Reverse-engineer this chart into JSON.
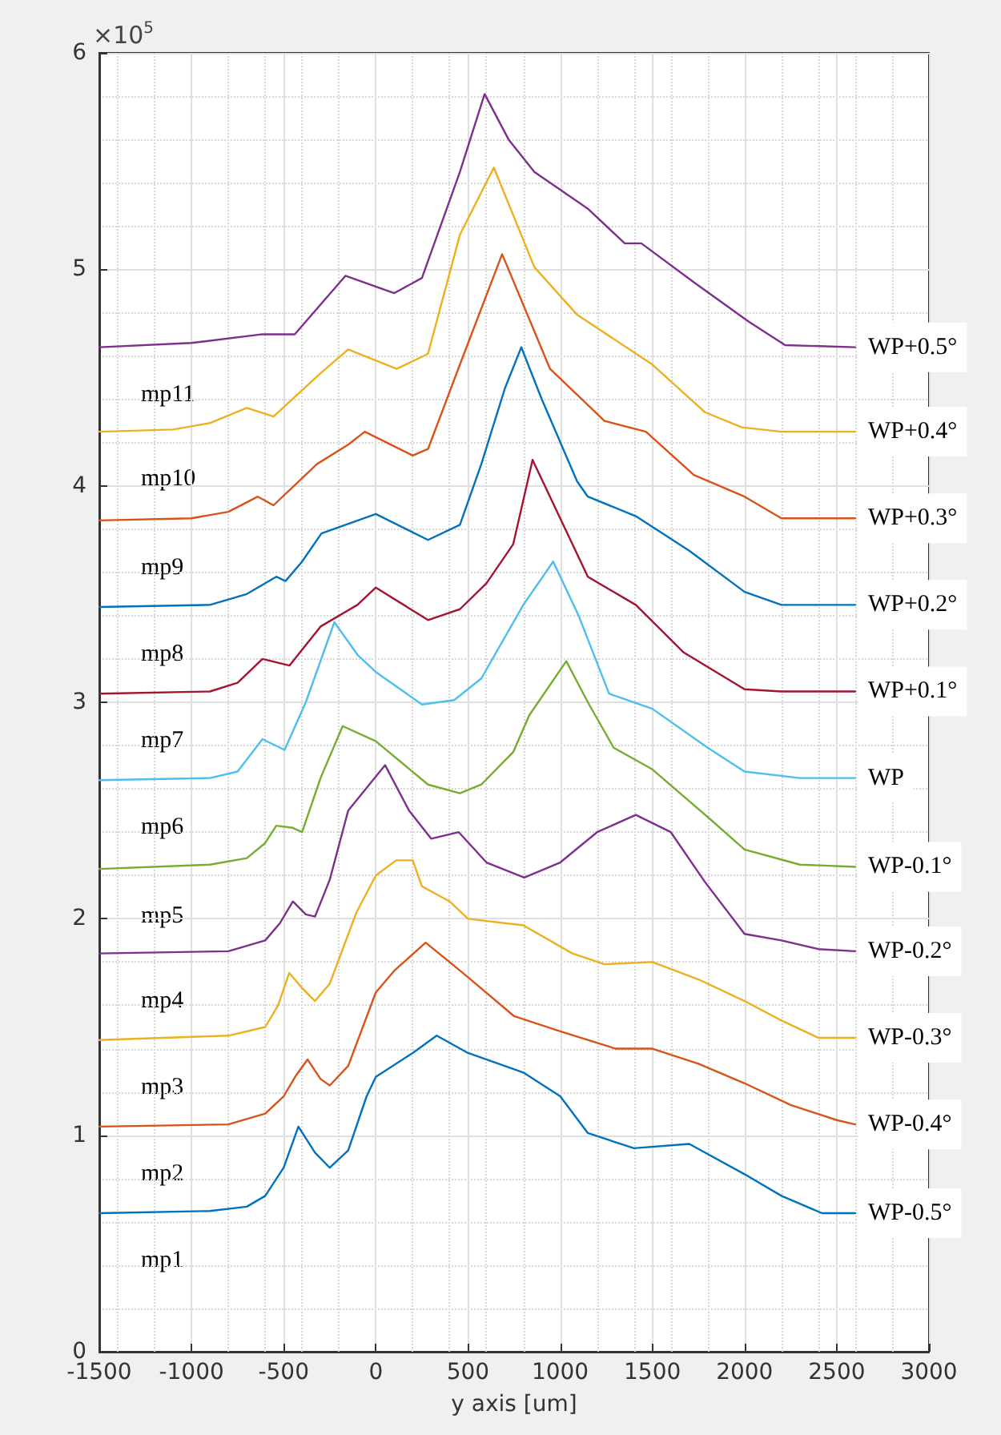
{
  "chart_data": {
    "type": "line",
    "xlabel": "y axis [um]",
    "xlim": [
      -1500,
      3000
    ],
    "xticks": [
      -1500,
      -1000,
      -500,
      0,
      500,
      1000,
      1500,
      2000,
      2500,
      3000
    ],
    "ylim": [
      0,
      6
    ],
    "yticks": [
      0,
      1,
      2,
      3,
      4,
      5,
      6
    ],
    "grid": true,
    "legend": false,
    "marker": "none",
    "line_style": "solid",
    "annotations": [
      "×10$^{5}$",
      "mp1",
      "mp2",
      "mp3",
      "mp4",
      "mp5",
      "mp6",
      "mp7",
      "mp8",
      "mp9",
      "mp10",
      "mp11"
    ],
    "series": [
      {
        "name": "WP-0.5°",
        "color": "#0072bd",
        "x": [
          -1500,
          -900,
          -700,
          -600,
          -500,
          -420,
          -330,
          -250,
          -150,
          -50,
          0,
          200,
          330,
          500,
          800,
          1000,
          1150,
          1400,
          1700,
          2000,
          2200,
          2420,
          2600
        ],
        "values": [
          0.64,
          0.65,
          0.67,
          0.72,
          0.85,
          1.04,
          0.92,
          0.85,
          0.93,
          1.18,
          1.27,
          1.38,
          1.46,
          1.38,
          1.29,
          1.18,
          1.01,
          0.94,
          0.96,
          0.82,
          0.72,
          0.64,
          0.64
        ]
      },
      {
        "name": "WP-0.4°",
        "color": "#d95319",
        "x": [
          -1500,
          -800,
          -600,
          -500,
          -430,
          -370,
          -300,
          -250,
          -150,
          0,
          100,
          270,
          400,
          500,
          750,
          1000,
          1300,
          1500,
          1750,
          2000,
          2250,
          2500,
          2600
        ],
        "values": [
          1.04,
          1.05,
          1.1,
          1.18,
          1.28,
          1.35,
          1.26,
          1.23,
          1.32,
          1.66,
          1.76,
          1.89,
          1.8,
          1.73,
          1.55,
          1.48,
          1.4,
          1.4,
          1.33,
          1.24,
          1.14,
          1.07,
          1.05
        ]
      },
      {
        "name": "WP-0.3°",
        "color": "#edb120",
        "x": [
          -1500,
          -800,
          -600,
          -530,
          -470,
          -400,
          -330,
          -250,
          -105,
          0,
          110,
          200,
          250,
          400,
          500,
          800,
          1066,
          1240,
          1500,
          1750,
          2000,
          2200,
          2400,
          2600
        ],
        "values": [
          1.44,
          1.46,
          1.5,
          1.6,
          1.75,
          1.68,
          1.62,
          1.7,
          2.03,
          2.2,
          2.27,
          2.27,
          2.15,
          2.08,
          2.0,
          1.97,
          1.84,
          1.79,
          1.8,
          1.72,
          1.62,
          1.53,
          1.45,
          1.45
        ]
      },
      {
        "name": "WP-0.2°",
        "color": "#7e2f8e",
        "x": [
          -1500,
          -800,
          -600,
          -520,
          -450,
          -380,
          -330,
          -250,
          -150,
          50,
          180,
          300,
          450,
          600,
          805,
          1000,
          1200,
          1410,
          1600,
          1785,
          2000,
          2200,
          2400,
          2600
        ],
        "values": [
          1.84,
          1.85,
          1.9,
          1.98,
          2.08,
          2.02,
          2.01,
          2.18,
          2.5,
          2.71,
          2.5,
          2.37,
          2.4,
          2.26,
          2.19,
          2.26,
          2.4,
          2.48,
          2.4,
          2.17,
          1.93,
          1.9,
          1.86,
          1.85
        ]
      },
      {
        "name": "WP-0.1°",
        "color": "#77ac30",
        "x": [
          -1500,
          -900,
          -700,
          -600,
          -540,
          -450,
          -400,
          -300,
          -180,
          0,
          283,
          456,
          572,
          745,
          832,
          1033,
          1150,
          1290,
          1500,
          1800,
          2000,
          2300,
          2600
        ],
        "values": [
          2.23,
          2.25,
          2.28,
          2.35,
          2.43,
          2.42,
          2.4,
          2.65,
          2.89,
          2.82,
          2.62,
          2.58,
          2.62,
          2.77,
          2.94,
          3.19,
          3.0,
          2.79,
          2.69,
          2.47,
          2.32,
          2.25,
          2.24
        ]
      },
      {
        "name": "WP",
        "color": "#4dbeee",
        "x": [
          -1500,
          -900,
          -750,
          -615,
          -495,
          -380,
          -225,
          -100,
          0,
          250,
          425,
          572,
          800,
          962,
          1100,
          1265,
          1500,
          1800,
          2000,
          2300,
          2600
        ],
        "values": [
          2.64,
          2.65,
          2.68,
          2.83,
          2.78,
          3.0,
          3.37,
          3.22,
          3.14,
          2.99,
          3.01,
          3.11,
          3.45,
          3.65,
          3.4,
          3.04,
          2.97,
          2.79,
          2.68,
          2.65,
          2.65
        ]
      },
      {
        "name": "WP+0.1°",
        "color": "#a2142f",
        "x": [
          -1500,
          -900,
          -750,
          -615,
          -468,
          -300,
          -100,
          0,
          283,
          456,
          600,
          745,
          850,
          1000,
          1150,
          1410,
          1670,
          2000,
          2200,
          2600
        ],
        "values": [
          3.04,
          3.05,
          3.09,
          3.2,
          3.17,
          3.35,
          3.45,
          3.53,
          3.38,
          3.43,
          3.55,
          3.73,
          4.12,
          3.85,
          3.58,
          3.45,
          3.23,
          3.06,
          3.05,
          3.05
        ]
      },
      {
        "name": "WP+0.2°",
        "color": "#0072bd",
        "x": [
          -1500,
          -900,
          -700,
          -540,
          -490,
          -400,
          -295,
          0,
          283,
          456,
          572,
          700,
          789,
          900,
          1092,
          1150,
          1410,
          1700,
          2000,
          2200,
          2600
        ],
        "values": [
          3.44,
          3.45,
          3.5,
          3.58,
          3.56,
          3.65,
          3.78,
          3.87,
          3.75,
          3.82,
          4.1,
          4.45,
          4.64,
          4.4,
          4.02,
          3.95,
          3.86,
          3.7,
          3.51,
          3.45,
          3.45
        ]
      },
      {
        "name": "WP+0.3°",
        "color": "#d95319",
        "x": [
          -1500,
          -1000,
          -800,
          -640,
          -555,
          -320,
          -150,
          -60,
          200,
          283,
          456,
          685,
          945,
          1240,
          1465,
          1725,
          2000,
          2200,
          2600
        ],
        "values": [
          3.84,
          3.85,
          3.88,
          3.95,
          3.91,
          4.1,
          4.19,
          4.25,
          4.14,
          4.17,
          4.56,
          5.07,
          4.54,
          4.3,
          4.25,
          4.05,
          3.95,
          3.85,
          3.85
        ]
      },
      {
        "name": "WP+0.4°",
        "color": "#edb120",
        "x": [
          -1500,
          -1100,
          -900,
          -700,
          -555,
          -300,
          -150,
          113,
          283,
          456,
          640,
          860,
          1092,
          1500,
          1785,
          1985,
          2200,
          2600
        ],
        "values": [
          4.25,
          4.26,
          4.29,
          4.36,
          4.32,
          4.52,
          4.63,
          4.54,
          4.61,
          5.16,
          5.47,
          5.01,
          4.79,
          4.56,
          4.34,
          4.27,
          4.25,
          4.25
        ]
      },
      {
        "name": "WP+0.5°",
        "color": "#7e2f8e",
        "x": [
          -1500,
          -1000,
          -615,
          -440,
          -165,
          100,
          250,
          456,
          590,
          720,
          860,
          1150,
          1350,
          1440,
          1725,
          2020,
          2220,
          2600
        ],
        "values": [
          4.64,
          4.66,
          4.7,
          4.7,
          4.97,
          4.89,
          4.96,
          5.45,
          5.81,
          5.6,
          5.45,
          5.28,
          5.12,
          5.12,
          4.94,
          4.76,
          4.65,
          4.64
        ]
      }
    ]
  }
}
